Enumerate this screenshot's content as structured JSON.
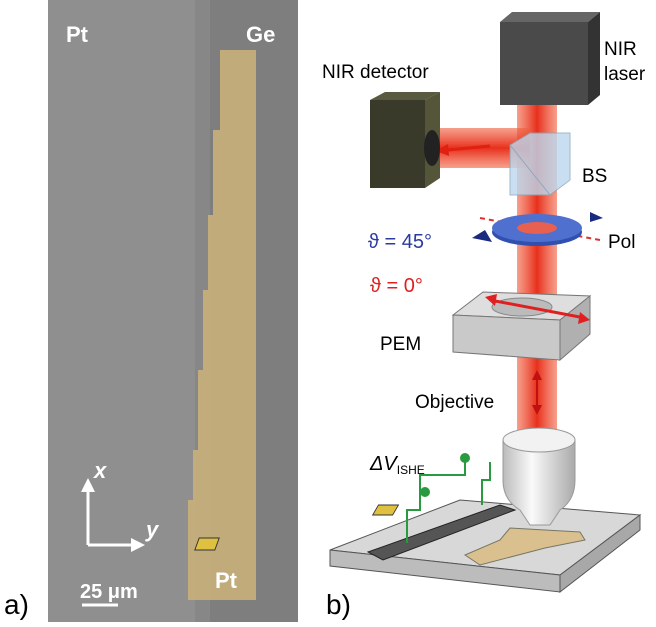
{
  "panel_a": {
    "label": "a)",
    "pt_top": "Pt",
    "ge": "Ge",
    "pt_bottom": "Pt",
    "axis_x": "x",
    "axis_y": "y",
    "scale_bar": "25 μm"
  },
  "panel_b": {
    "label": "b)",
    "nir_detector": "NIR detector",
    "nir_laser_line1": "NIR",
    "nir_laser_line2": "laser",
    "bs": "BS",
    "pol_angle": "ϑ = 45°",
    "pol": "Pol",
    "pem_angle": "ϑ = 0°",
    "pem": "PEM",
    "objective": "Objective",
    "voltage": "ΔV",
    "voltage_sub": "ISHE"
  }
}
